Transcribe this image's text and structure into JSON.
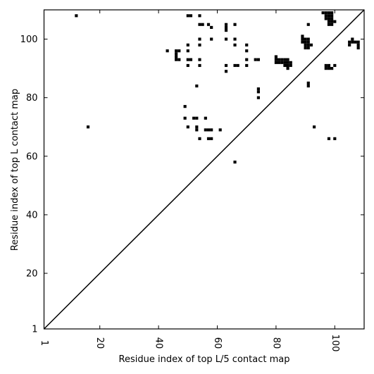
{
  "chart_data": {
    "type": "heatmap",
    "xlabel": "Residue index of top L/5 contact map",
    "ylabel": "Residue index of top L contact map",
    "xlim": [
      1,
      110
    ],
    "ylim": [
      1,
      110
    ],
    "x_ticks": [
      1,
      20,
      40,
      60,
      80,
      100
    ],
    "y_ticks": [
      1,
      20,
      40,
      60,
      80,
      100
    ],
    "grid": false,
    "diagonal_line": true,
    "cell_color": "#000000",
    "upper_contacts": [
      [
        12,
        108
      ],
      [
        50,
        108
      ],
      [
        51,
        108
      ],
      [
        54,
        108
      ],
      [
        57,
        105
      ],
      [
        58,
        104
      ],
      [
        54,
        105
      ],
      [
        55,
        105
      ],
      [
        63,
        105
      ],
      [
        63,
        104
      ],
      [
        63,
        103
      ],
      [
        66,
        105
      ],
      [
        54,
        100
      ],
      [
        58,
        100
      ],
      [
        63,
        100
      ],
      [
        66,
        100
      ],
      [
        50,
        98
      ],
      [
        54,
        98
      ],
      [
        66,
        98
      ],
      [
        70,
        98
      ],
      [
        43,
        96
      ],
      [
        46,
        96
      ],
      [
        47,
        96
      ],
      [
        50,
        96
      ],
      [
        70,
        96
      ],
      [
        46,
        95
      ],
      [
        46,
        94
      ],
      [
        46,
        93
      ],
      [
        47,
        93
      ],
      [
        50,
        93
      ],
      [
        51,
        93
      ],
      [
        54,
        93
      ],
      [
        70,
        93
      ],
      [
        73,
        93
      ],
      [
        74,
        93
      ],
      [
        50,
        91
      ],
      [
        54,
        91
      ],
      [
        63,
        91
      ],
      [
        66,
        91
      ],
      [
        67,
        91
      ],
      [
        70,
        91
      ],
      [
        63,
        89
      ],
      [
        53,
        84
      ],
      [
        74,
        83
      ],
      [
        74,
        82
      ],
      [
        74,
        80
      ],
      [
        49,
        77
      ],
      [
        49,
        73
      ],
      [
        52,
        73
      ],
      [
        53,
        73
      ],
      [
        56,
        73
      ],
      [
        16,
        70
      ],
      [
        50,
        70
      ],
      [
        53,
        70
      ],
      [
        53,
        69
      ],
      [
        56,
        69
      ],
      [
        57,
        69
      ],
      [
        58,
        69
      ],
      [
        61,
        69
      ],
      [
        54,
        66
      ],
      [
        57,
        66
      ],
      [
        58,
        66
      ],
      [
        66,
        58
      ],
      [
        80,
        94
      ],
      [
        80,
        93
      ],
      [
        81,
        93
      ],
      [
        82,
        93
      ],
      [
        83,
        93
      ],
      [
        84,
        93
      ],
      [
        80,
        92
      ],
      [
        81,
        92
      ],
      [
        82,
        92
      ],
      [
        83,
        92
      ],
      [
        84,
        92
      ],
      [
        85,
        92
      ],
      [
        83,
        91
      ],
      [
        84,
        91
      ],
      [
        85,
        91
      ],
      [
        84,
        90
      ],
      [
        89,
        101
      ],
      [
        89,
        100
      ],
      [
        90,
        100
      ],
      [
        91,
        100
      ],
      [
        89,
        99
      ],
      [
        90,
        99
      ],
      [
        91,
        99
      ],
      [
        90,
        98
      ],
      [
        91,
        98
      ],
      [
        92,
        98
      ],
      [
        90,
        97
      ],
      [
        91,
        97
      ],
      [
        91,
        105
      ],
      [
        91,
        85
      ],
      [
        91,
        84
      ],
      [
        93,
        70
      ],
      [
        96,
        109
      ],
      [
        97,
        109
      ],
      [
        98,
        109
      ],
      [
        99,
        109
      ],
      [
        97,
        108
      ],
      [
        98,
        108
      ],
      [
        99,
        108
      ],
      [
        97,
        107
      ],
      [
        98,
        107
      ],
      [
        99,
        107
      ],
      [
        98,
        106
      ],
      [
        99,
        106
      ],
      [
        100,
        106
      ],
      [
        98,
        105
      ],
      [
        99,
        105
      ],
      [
        97,
        91
      ],
      [
        98,
        91
      ],
      [
        100,
        91
      ],
      [
        97,
        90
      ],
      [
        98,
        90
      ],
      [
        99,
        90
      ],
      [
        98,
        66
      ],
      [
        100,
        66
      ],
      [
        105,
        99
      ],
      [
        106,
        99
      ],
      [
        107,
        99
      ],
      [
        108,
        99
      ],
      [
        106,
        100
      ],
      [
        105,
        98
      ],
      [
        108,
        98
      ],
      [
        108,
        97
      ]
    ]
  }
}
